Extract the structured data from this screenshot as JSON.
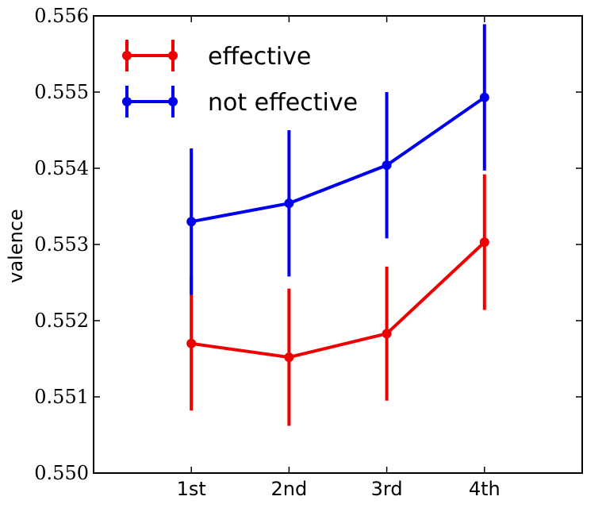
{
  "chart_data": {
    "type": "line",
    "title": "",
    "xlabel": "",
    "ylabel": "valence",
    "categories": [
      "1st",
      "2nd",
      "3rd",
      "4th"
    ],
    "ylim": [
      0.55,
      0.556
    ],
    "yticks": [
      "0.550",
      "0.551",
      "0.552",
      "0.553",
      "0.554",
      "0.555",
      "0.556"
    ],
    "grid": false,
    "legend_position": "top-left",
    "series": [
      {
        "name": "effective",
        "color": "#ee0000",
        "values": [
          0.5517,
          0.55152,
          0.55183,
          0.55303
        ],
        "error": [
          0.00088,
          0.0009,
          0.00088,
          0.00089
        ]
      },
      {
        "name": "not effective",
        "color": "#0000ee",
        "values": [
          0.5533,
          0.55354,
          0.55404,
          0.55493
        ],
        "error": [
          0.00096,
          0.00096,
          0.00096,
          0.00096
        ]
      }
    ]
  }
}
